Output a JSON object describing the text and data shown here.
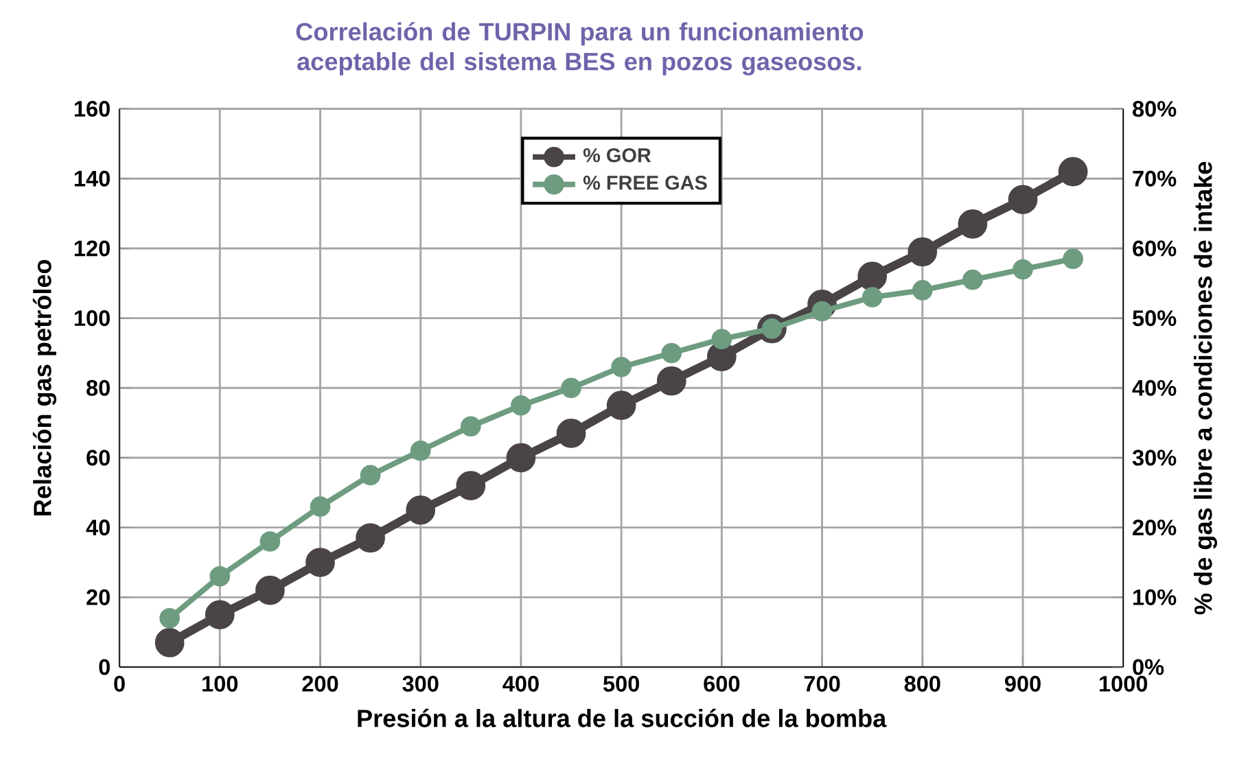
{
  "chart_data": {
    "type": "line",
    "title": "Correlación de TURPIN para un funcionamiento aceptable del sistema BES en pozos gaseosos.",
    "xlabel": "Presión a la altura de la succión de la bomba",
    "ylabel": "Relación gas petróleo",
    "y2label": "% de gas libre a condiciones de intake",
    "x": [
      50,
      100,
      150,
      200,
      250,
      300,
      350,
      400,
      450,
      500,
      550,
      600,
      650,
      700,
      750,
      800,
      850,
      900,
      950
    ],
    "series": [
      {
        "name": "% GOR",
        "color": "#4a4347",
        "values": [
          7,
          15,
          22,
          30,
          37,
          45,
          52,
          60,
          67,
          75,
          82,
          89,
          97,
          104,
          112,
          119,
          127,
          134,
          142
        ]
      },
      {
        "name": "% FREE GAS",
        "color": "#6e9c80",
        "axis": "y2",
        "values": [
          7,
          13,
          18,
          23,
          27.5,
          31,
          34.5,
          37.5,
          40,
          43,
          45,
          47,
          48.5,
          51,
          53,
          54,
          55.5,
          57,
          58.5
        ]
      }
    ],
    "xlim": [
      0,
      1000
    ],
    "xticks": [
      0,
      100,
      200,
      300,
      400,
      500,
      600,
      700,
      800,
      900,
      1000
    ],
    "ylim": [
      0,
      160
    ],
    "yticks": [
      0,
      20,
      40,
      60,
      80,
      100,
      120,
      140,
      160
    ],
    "y2lim": [
      0,
      80
    ],
    "y2ticks": [
      {
        "value": 0,
        "label": "0%"
      },
      {
        "value": 10,
        "label": "10%"
      },
      {
        "value": 20,
        "label": "20%"
      },
      {
        "value": 30,
        "label": "30%"
      },
      {
        "value": 40,
        "label": "40%"
      },
      {
        "value": 50,
        "label": "50%"
      },
      {
        "value": 60,
        "label": "60%"
      },
      {
        "value": 70,
        "label": "70%"
      },
      {
        "value": 80,
        "label": "80%"
      }
    ],
    "grid": true,
    "legend": "top",
    "marker": "circle",
    "line_style": "solid"
  }
}
